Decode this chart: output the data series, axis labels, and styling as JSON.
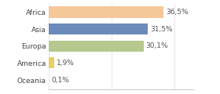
{
  "categories": [
    "Africa",
    "Asia",
    "Europa",
    "America",
    "Oceania"
  ],
  "values": [
    36.5,
    31.5,
    30.1,
    1.9,
    0.1
  ],
  "labels": [
    "36,5%",
    "31,5%",
    "30,1%",
    "1,9%",
    "0,1%"
  ],
  "bar_colors": [
    "#f5c899",
    "#6b8cba",
    "#b5c98e",
    "#e8d060",
    "#aaaaaa"
  ],
  "background_color": "#ffffff",
  "xlim": [
    0,
    46
  ],
  "bar_height": 0.65,
  "label_fontsize": 6.5,
  "tick_fontsize": 6.5
}
